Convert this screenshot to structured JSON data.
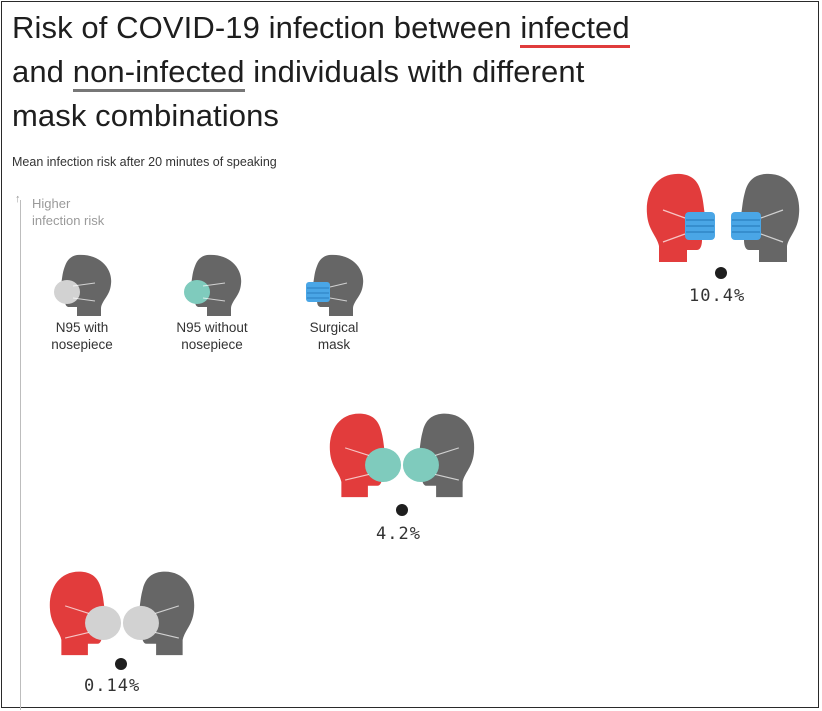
{
  "title": {
    "before": "Risk of COVID-19 infection between ",
    "infected": "infected",
    "and": "and ",
    "non_infected": "non-infected",
    "after_line2": " individuals with different",
    "line3": "mask combinations"
  },
  "subtitle": "Mean infection risk after 20 minutes of speaking",
  "axis": {
    "arrow": "↑",
    "label_line1": "Higher",
    "label_line2": "infection risk"
  },
  "legend": [
    {
      "line1": "N95 with",
      "line2": "nosepiece",
      "mask_icon": "n95-with-nosepiece-mask",
      "color": "#d2d2d2"
    },
    {
      "line1": "N95 without",
      "line2": "nosepiece",
      "mask_icon": "n95-without-nosepiece-mask",
      "color": "#7fcbbd"
    },
    {
      "line1": "Surgical",
      "line2": "mask",
      "mask_icon": "surgical-mask",
      "color": "#4aa6e6"
    }
  ],
  "colors": {
    "infected_head": "#e23c3c",
    "noninfected_head": "#666666",
    "n95_with_nosepiece": "#d2d2d2",
    "n95_without_nosepiece": "#7fcbbd",
    "surgical": "#4aa6e6",
    "dot": "#1e1e1e"
  },
  "chart_data": {
    "type": "scatter",
    "title": "Risk of COVID-19 infection between infected and non-infected individuals with different mask combinations",
    "subtitle": "Mean infection risk after 20 minutes of speaking",
    "ylabel": "Higher infection risk",
    "points": [
      {
        "mask": "N95 with nosepiece",
        "value": 0.14,
        "label": "0.14%"
      },
      {
        "mask": "N95 without nosepiece",
        "value": 4.2,
        "label": "4.2%"
      },
      {
        "mask": "Surgical mask",
        "value": 10.4,
        "label": "10.4%"
      }
    ]
  }
}
